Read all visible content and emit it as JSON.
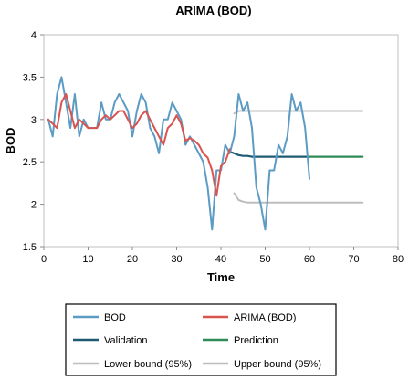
{
  "chart_data": {
    "type": "line",
    "title": "ARIMA (BOD)",
    "xlabel": "Time",
    "ylabel": "BOD",
    "xlim": [
      0,
      80
    ],
    "ylim": [
      1.5,
      4
    ],
    "xticks": [
      0,
      10,
      20,
      30,
      40,
      50,
      60,
      70,
      80
    ],
    "yticks": [
      1.5,
      2,
      2.5,
      3,
      3.5,
      4
    ],
    "ytick_labels": [
      "1.5",
      "2",
      "2.5",
      "3",
      "3.5",
      "4"
    ],
    "grid": false,
    "legend_position": "bottom",
    "series": [
      {
        "name": "BOD",
        "color": "#5b9bc4",
        "x": [
          1,
          2,
          3,
          4,
          5,
          6,
          7,
          8,
          9,
          10,
          11,
          12,
          13,
          14,
          15,
          16,
          17,
          18,
          19,
          20,
          21,
          22,
          23,
          24,
          25,
          26,
          27,
          28,
          29,
          30,
          31,
          32,
          33,
          34,
          35,
          36,
          37,
          38,
          39,
          40,
          41,
          42,
          43,
          44,
          45,
          46,
          47,
          48,
          49,
          50,
          51,
          52,
          53,
          54,
          55,
          56,
          57,
          58,
          59,
          60
        ],
        "values": [
          3.0,
          2.8,
          3.3,
          3.5,
          3.2,
          2.9,
          3.3,
          2.8,
          3.0,
          2.9,
          2.9,
          2.9,
          3.2,
          3.0,
          3.0,
          3.2,
          3.3,
          3.2,
          3.1,
          2.8,
          3.1,
          3.3,
          3.2,
          2.9,
          2.8,
          2.6,
          3.0,
          3.0,
          3.2,
          3.1,
          3.0,
          2.7,
          2.8,
          2.7,
          2.6,
          2.5,
          2.2,
          1.7,
          2.4,
          2.4,
          2.7,
          2.6,
          2.8,
          3.3,
          3.1,
          3.2,
          2.9,
          2.2,
          2.0,
          1.7,
          2.4,
          2.4,
          2.7,
          2.6,
          2.8,
          3.3,
          3.1,
          3.2,
          2.9,
          2.3
        ]
      },
      {
        "name": "ARIMA (BOD)",
        "color": "#d9534f",
        "x": [
          1,
          2,
          3,
          4,
          5,
          6,
          7,
          8,
          9,
          10,
          11,
          12,
          13,
          14,
          15,
          16,
          17,
          18,
          19,
          20,
          21,
          22,
          23,
          24,
          25,
          26,
          27,
          28,
          29,
          30,
          31,
          32,
          33,
          34,
          35,
          36,
          37,
          38,
          39,
          40,
          41,
          42
        ],
        "values": [
          3.0,
          2.95,
          2.9,
          3.2,
          3.3,
          3.1,
          2.9,
          3.0,
          2.95,
          2.9,
          2.9,
          2.9,
          3.0,
          3.05,
          3.0,
          3.05,
          3.1,
          3.1,
          3.0,
          2.9,
          2.95,
          3.05,
          3.1,
          3.0,
          2.9,
          2.8,
          2.7,
          2.9,
          2.95,
          3.05,
          2.95,
          2.75,
          2.78,
          2.75,
          2.7,
          2.6,
          2.55,
          2.4,
          2.1,
          2.45,
          2.5,
          2.65
        ]
      },
      {
        "name": "Validation",
        "color": "#1f5a73",
        "x": [
          42,
          43,
          44,
          45,
          46,
          47,
          48,
          50,
          55,
          60
        ],
        "values": [
          2.62,
          2.6,
          2.58,
          2.57,
          2.57,
          2.56,
          2.56,
          2.56,
          2.56,
          2.56
        ]
      },
      {
        "name": "Prediction",
        "color": "#2e8b57",
        "x": [
          60,
          65,
          70,
          72
        ],
        "values": [
          2.56,
          2.56,
          2.56,
          2.56
        ]
      },
      {
        "name": "Lower bound (95%)",
        "color": "#bdbdbd",
        "x": [
          43,
          44,
          45,
          46,
          47,
          48,
          50,
          55,
          60,
          65,
          70,
          72
        ],
        "values": [
          2.13,
          2.05,
          2.03,
          2.02,
          2.02,
          2.02,
          2.02,
          2.02,
          2.02,
          2.02,
          2.02,
          2.02
        ]
      },
      {
        "name": "Upper bound (95%)",
        "color": "#bdbdbd",
        "x": [
          43,
          44,
          45,
          46,
          47,
          48,
          50,
          55,
          60,
          65,
          70,
          72
        ],
        "values": [
          3.07,
          3.1,
          3.1,
          3.1,
          3.1,
          3.1,
          3.1,
          3.1,
          3.1,
          3.1,
          3.1,
          3.1
        ]
      }
    ]
  }
}
